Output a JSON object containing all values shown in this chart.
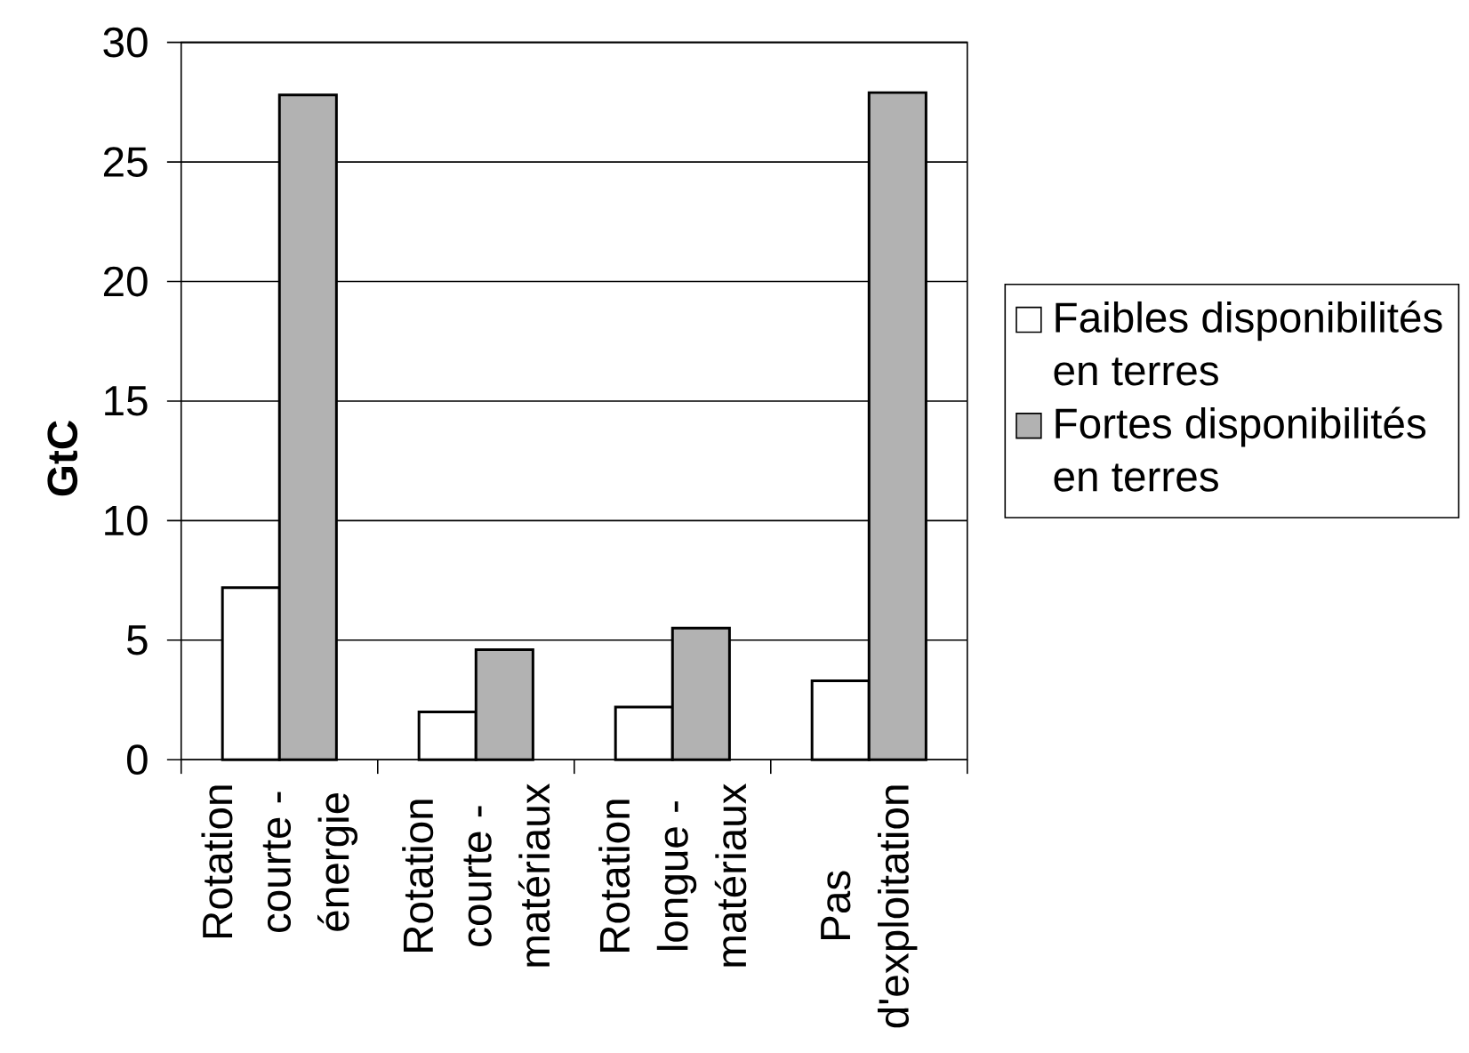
{
  "chart_data": {
    "type": "bar",
    "ylabel": "GtC",
    "categories": [
      "Rotation courte - énergie",
      "Rotation courte - matériaux",
      "Rotation longue - matériaux",
      "Pas d'exploitation"
    ],
    "series": [
      {
        "name": "Faibles disponibilités en terres",
        "color": "#ffffff",
        "values": [
          7.2,
          2.0,
          2.2,
          3.3
        ]
      },
      {
        "name": "Fortes disponibilités en terres",
        "color": "#b2b2b2",
        "values": [
          27.8,
          4.6,
          5.5,
          27.9
        ]
      }
    ],
    "ylim": [
      0,
      30
    ],
    "yticks": [
      0,
      5,
      10,
      15,
      20,
      25,
      30
    ],
    "grid": "y",
    "legend": "right"
  }
}
